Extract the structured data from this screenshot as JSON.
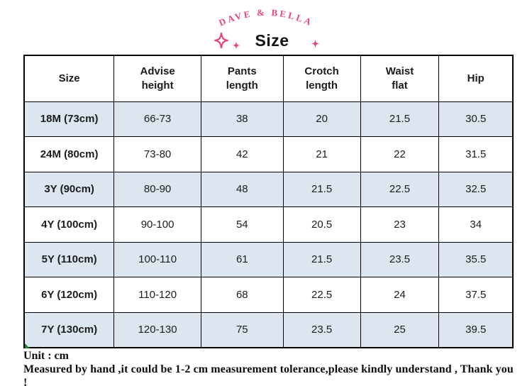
{
  "brand": {
    "name": "DAVE & BELLA"
  },
  "title": "Size",
  "icons": {
    "sparkle_large": "four-point-sparkle-outline",
    "sparkle_small": "four-point-sparkle-filled"
  },
  "table": {
    "columns": [
      "Size",
      "Advise\nheight",
      "Pants\nlength",
      "Crotch\nlength",
      "Waist\nflat",
      "Hip"
    ],
    "rows": [
      [
        "18M (73cm)",
        "66-73",
        "38",
        "20",
        "21.5",
        "30.5"
      ],
      [
        "24M (80cm)",
        "73-80",
        "42",
        "21",
        "22",
        "31.5"
      ],
      [
        "3Y (90cm)",
        "80-90",
        "48",
        "21.5",
        "22.5",
        "32.5"
      ],
      [
        "4Y (100cm)",
        "90-100",
        "54",
        "20.5",
        "23",
        "34"
      ],
      [
        "5Y (110cm)",
        "100-110",
        "61",
        "21.5",
        "23.5",
        "35.5"
      ],
      [
        "6Y (120cm)",
        "110-120",
        "68",
        "22.5",
        "24",
        "37.5"
      ],
      [
        "7Y (130cm)",
        "120-130",
        "75",
        "23.5",
        "25",
        "39.5"
      ]
    ]
  },
  "footer": {
    "unit": "Unit : cm",
    "note": "Measured by hand ,it could be 1-2 cm measurement tolerance,please kindly understand , Thank you !"
  },
  "colors": {
    "brand_pink": "#e5487c",
    "row_alt": "#dce6f1",
    "border": "#000000",
    "marker_green": "#1e7e34"
  }
}
